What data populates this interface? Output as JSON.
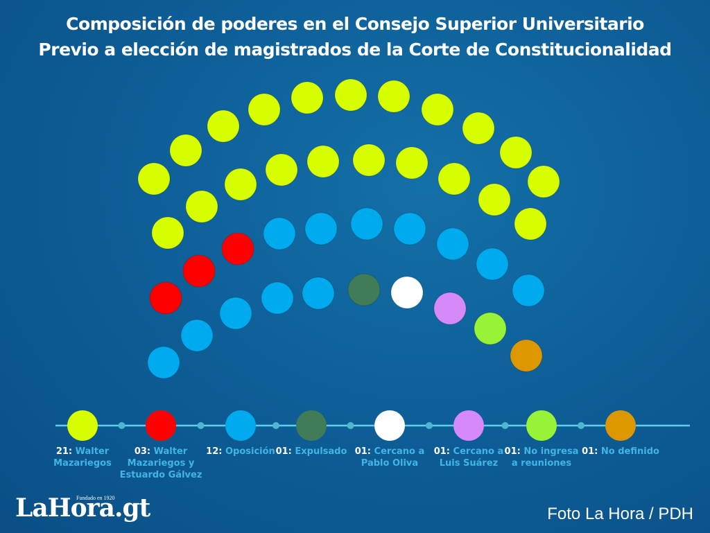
{
  "title": "Composición de poderes en el Consejo Superior Universitario",
  "subtitle": "Previo a elección de magistrados de la Corte de Constitucionalidad",
  "chart_data": {
    "type": "parliament",
    "total_seats": 41,
    "groups": [
      {
        "count_label": "21:",
        "label": "Walter Mazariegos",
        "value": 21,
        "color": "#d7ff00"
      },
      {
        "count_label": "03:",
        "label": "Walter Mazariegos y Estuardo Gálvez",
        "value": 3,
        "color": "#ff0000"
      },
      {
        "count_label": "12:",
        "label": "Oposición",
        "value": 12,
        "color": "#00aaee"
      },
      {
        "count_label": "01:",
        "label": "Expulsado",
        "value": 1,
        "color": "#3f7c57"
      },
      {
        "count_label": "01:",
        "label": "Cercano a Pablo Oliva",
        "value": 1,
        "color": "#ffffff"
      },
      {
        "count_label": "01:",
        "label": "Cercano a Luis Suárez",
        "value": 1,
        "color": "#d58af7"
      },
      {
        "count_label": "01:",
        "label": "No ingresa a reuniones",
        "value": 1,
        "color": "#98f237"
      },
      {
        "count_label": "01:",
        "label": "No definido",
        "value": 1,
        "color": "#dd9800"
      }
    ]
  },
  "footer": {
    "logo_text": "LaHora.gt",
    "logo_tagline": "Fundado en 1920",
    "credit": "Foto La Hora / PDH"
  }
}
